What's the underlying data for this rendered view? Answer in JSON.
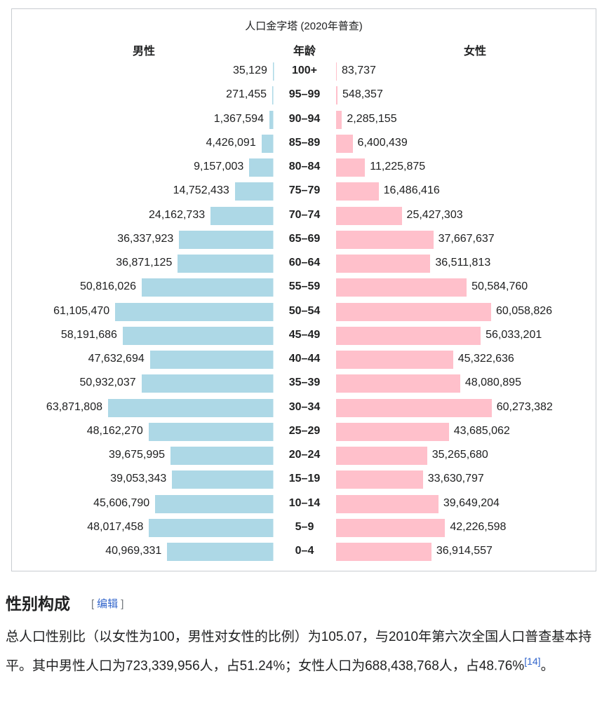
{
  "chart_data": {
    "type": "bar",
    "subtype": "population-pyramid",
    "title": "人口金字塔 (2020年普查)",
    "headers": {
      "male": "男性",
      "age": "年龄",
      "female": "女性"
    },
    "categories": [
      "100+",
      "95–99",
      "90–94",
      "85–89",
      "80–84",
      "75–79",
      "70–74",
      "65–69",
      "60–64",
      "55–59",
      "50–54",
      "45–49",
      "40–44",
      "35–39",
      "30–34",
      "25–29",
      "20–24",
      "15–19",
      "10–14",
      "5–9",
      "0–4"
    ],
    "series": [
      {
        "name": "男性",
        "color": "#add8e6",
        "values": [
          35129,
          271455,
          1367594,
          4426091,
          9157003,
          14752433,
          24162733,
          36337923,
          36871125,
          50816026,
          61105470,
          58191686,
          47632694,
          50932037,
          63871808,
          48162270,
          39675995,
          39053343,
          45606790,
          48017458,
          40969331
        ],
        "labels": [
          "35,129",
          "271,455",
          "1,367,594",
          "4,426,091",
          "9,157,003",
          "14,752,433",
          "24,162,733",
          "36,337,923",
          "36,871,125",
          "50,816,026",
          "61,105,470",
          "58,191,686",
          "47,632,694",
          "50,932,037",
          "63,871,808",
          "48,162,270",
          "39,675,995",
          "39,053,343",
          "45,606,790",
          "48,017,458",
          "40,969,331"
        ]
      },
      {
        "name": "女性",
        "color": "#ffc0cb",
        "values": [
          83737,
          548357,
          2285155,
          6400439,
          11225875,
          16486416,
          25427303,
          37667637,
          36511813,
          50584760,
          60058826,
          56033201,
          45322636,
          48080895,
          60273382,
          43685062,
          35265680,
          33630797,
          39649204,
          42226598,
          36914557
        ],
        "labels": [
          "83,737",
          "548,357",
          "2,285,155",
          "6,400,439",
          "11,225,875",
          "16,486,416",
          "25,427,303",
          "37,667,637",
          "36,511,813",
          "50,584,760",
          "60,058,826",
          "56,033,201",
          "45,322,636",
          "48,080,895",
          "60,273,382",
          "43,685,062",
          "35,265,680",
          "33,630,797",
          "39,649,204",
          "42,226,598",
          "36,914,557"
        ]
      }
    ]
  },
  "section": {
    "heading": "性别构成",
    "edit_open": "[",
    "edit_label": "编辑",
    "edit_close": "]",
    "paragraph": "总人口性别比（以女性为100，男性对女性的比例）为105.07，与2010年第六次全国人口普查基本持平。其中男性人口为723,339,956人，占51.24%；女性人口为688,438,768人，占48.76%",
    "ref": "[14]",
    "end": "。"
  }
}
